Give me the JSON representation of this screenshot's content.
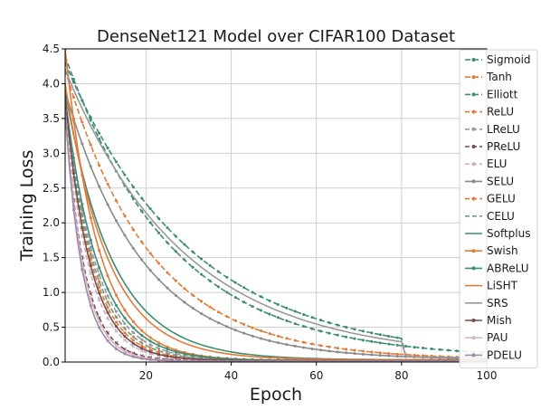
{
  "chart_data": {
    "type": "line",
    "title": "DenseNet121 Model over CIFAR100 Dataset",
    "xlabel": "Epoch",
    "ylabel": "Training Loss",
    "xlim": [
      1,
      100
    ],
    "ylim": [
      0,
      4.5
    ],
    "xticks": [
      20,
      40,
      60,
      80,
      100
    ],
    "yticks": [
      0.0,
      0.5,
      1.0,
      1.5,
      2.0,
      2.5,
      3.0,
      3.5,
      4.0,
      4.5
    ],
    "ytick_labels": [
      "0.0",
      "0.5",
      "1.0",
      "1.5",
      "2.0",
      "2.5",
      "3.0",
      "3.5",
      "4.0",
      "4.5"
    ],
    "grid": true,
    "legend_position": "right",
    "series": [
      {
        "name": "Sigmoid",
        "color": "#3d8c74",
        "dash": "6,3",
        "marker": "dot",
        "start": 4.3,
        "k": 0.034,
        "drop_at": 80,
        "tail": 0.05
      },
      {
        "name": "Tanh",
        "color": "#e07b39",
        "dash": "6,3",
        "marker": "dot",
        "start": 4.2,
        "k": 0.05,
        "tail": 0.03
      },
      {
        "name": "Elliott",
        "color": "#3d8c74",
        "dash": "6,3",
        "marker": "dot",
        "start": 4.4,
        "k": 0.04,
        "tail": 0.05
      },
      {
        "name": "ReLU",
        "color": "#e07b39",
        "dash": "5,3",
        "marker": "dot",
        "start": 3.8,
        "k": 0.15,
        "tail": 0.02
      },
      {
        "name": "LReLU",
        "color": "#999999",
        "dash": "5,3",
        "marker": "dot",
        "start": 3.8,
        "k": 0.14,
        "tail": 0.02
      },
      {
        "name": "PReLU",
        "color": "#7a4a4a",
        "dash": "5,3",
        "marker": "x",
        "start": 3.6,
        "k": 0.22,
        "tail": 0.02
      },
      {
        "name": "ELU",
        "color": "#c8b0c0",
        "dash": "5,3",
        "marker": "x",
        "start": 3.7,
        "k": 0.18,
        "tail": 0.02
      },
      {
        "name": "SELU",
        "color": "#8a8a8a",
        "dash": "",
        "marker": "dot",
        "start": 3.9,
        "k": 0.055,
        "tail": 0.03
      },
      {
        "name": "GELU",
        "color": "#e07b39",
        "dash": "5,3",
        "marker": "dot",
        "start": 3.8,
        "k": 0.16,
        "tail": 0.02
      },
      {
        "name": "CELU",
        "color": "#6a9e8e",
        "dash": "5,3",
        "marker": "none",
        "start": 3.8,
        "k": 0.15,
        "tail": 0.02
      },
      {
        "name": "Softplus",
        "color": "#3d8c74",
        "dash": "",
        "marker": "none",
        "start": 3.9,
        "k": 0.09,
        "tail": 0.03
      },
      {
        "name": "Swish",
        "color": "#e07b39",
        "dash": "",
        "marker": "square",
        "start": 4.5,
        "k": 0.13,
        "tail": 0.02
      },
      {
        "name": "ABReLU",
        "color": "#3d8c74",
        "dash": "",
        "marker": "dot",
        "start": 3.8,
        "k": 0.13,
        "tail": 0.02
      },
      {
        "name": "LiSHT",
        "color": "#e07b39",
        "dash": "",
        "marker": "none",
        "start": 4.0,
        "k": 0.1,
        "tail": 0.03
      },
      {
        "name": "SRS",
        "color": "#999999",
        "dash": "",
        "marker": "none",
        "start": 4.2,
        "k": 0.036,
        "drop_at": 80,
        "tail": 0.05
      },
      {
        "name": "Mish",
        "color": "#7a4a4a",
        "dash": "",
        "marker": "dot",
        "start": 3.8,
        "k": 0.17,
        "tail": 0.02
      },
      {
        "name": "PAU",
        "color": "#d4b8c8",
        "dash": "",
        "marker": "square",
        "start": 3.6,
        "k": 0.23,
        "tail": 0.01
      },
      {
        "name": "PDELU",
        "color": "#9b8aa8",
        "dash": "",
        "marker": "square",
        "start": 3.6,
        "k": 0.25,
        "tail": 0.01
      }
    ]
  }
}
